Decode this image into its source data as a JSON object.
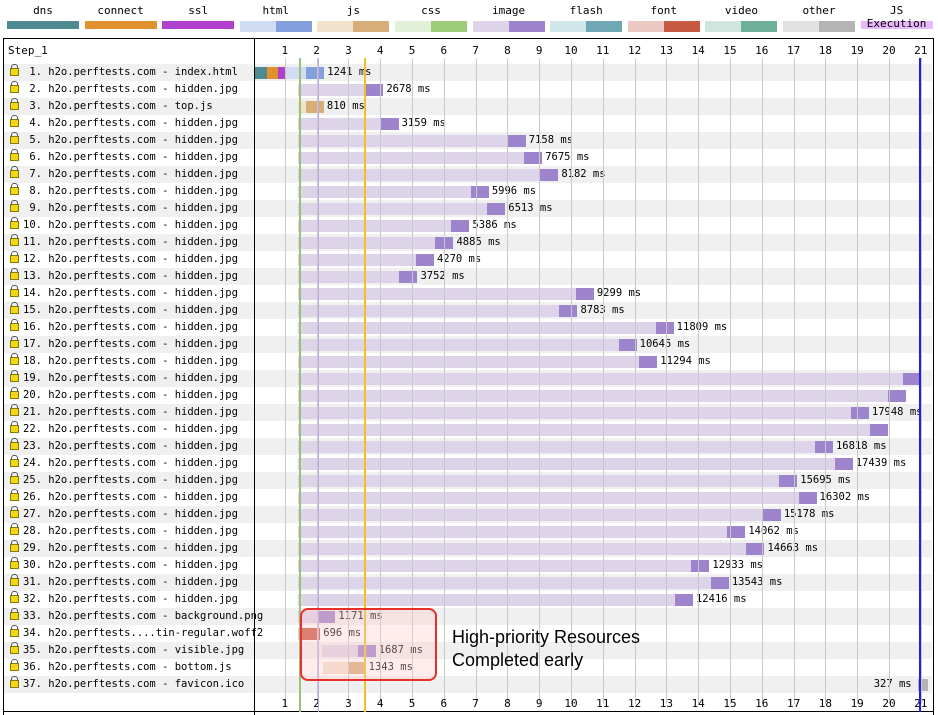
{
  "legend": [
    {
      "label": "dns",
      "light": "#4d8a92",
      "dark": "#4d8a92"
    },
    {
      "label": "connect",
      "light": "#e0902e",
      "dark": "#e0902e"
    },
    {
      "label": "ssl",
      "light": "#b040cc",
      "dark": "#b040cc"
    },
    {
      "label": "html",
      "light": "#d0dcf2",
      "dark": "#839fdc"
    },
    {
      "label": "js",
      "light": "#f0e2cc",
      "dark": "#d8ae78"
    },
    {
      "label": "css",
      "light": "#e2f0d8",
      "dark": "#9ccc78"
    },
    {
      "label": "image",
      "light": "#ddd4ea",
      "dark": "#9e84cc"
    },
    {
      "label": "flash",
      "light": "#cfe6ea",
      "dark": "#6fa8b4"
    },
    {
      "label": "font",
      "light": "#eccac4",
      "dark": "#c85a44"
    },
    {
      "label": "video",
      "light": "#cfe6de",
      "dark": "#6fb09a"
    },
    {
      "label": "other",
      "light": "#e2e2e2",
      "dark": "#b4b4b4"
    },
    {
      "label": "JS Execution",
      "light": "#e8b8f8",
      "dark": "#e8b8f8"
    }
  ],
  "step_label": "Step_1",
  "axis_ticks": [
    "1",
    "2",
    "3",
    "4",
    "5",
    "6",
    "7",
    "8",
    "9",
    "10",
    "11",
    "12",
    "13",
    "14",
    "15",
    "16",
    "17",
    "18",
    "19",
    "20",
    "21"
  ],
  "markers": [
    {
      "name": "start-render",
      "time_s": 1.45,
      "color": "#9ac07a"
    },
    {
      "name": "dom-interactive",
      "time_s": 2.05,
      "color": "#c0a8e0"
    },
    {
      "name": "dom-content-loaded",
      "time_s": 3.5,
      "color": "#f2c020"
    },
    {
      "name": "on-load",
      "time_s": 20.95,
      "color": "#2020e0"
    }
  ],
  "requests": [
    {
      "label": " 1. h2o.perftests.com - index.html",
      "type": "html",
      "start_s": 1.0,
      "duration_ms": 1241,
      "dur_label": "1241 ms",
      "pre": [
        [
          "dns",
          0.06,
          0.45
        ],
        [
          "connect",
          0.45,
          0.8
        ],
        [
          "ssl",
          0.8,
          1.0
        ]
      ]
    },
    {
      "label": " 2. h2o.perftests.com - hidden.jpg",
      "type": "image",
      "start_s": 1.42,
      "duration_ms": 2678,
      "dur_label": "2678 ms"
    },
    {
      "label": " 3. h2o.perftests.com - top.js",
      "type": "js",
      "start_s": 1.42,
      "duration_ms": 810,
      "dur_label": "810 ms"
    },
    {
      "label": " 4. h2o.perftests.com - hidden.jpg",
      "type": "image",
      "start_s": 1.42,
      "duration_ms": 3159,
      "dur_label": "3159 ms"
    },
    {
      "label": " 5. h2o.perftests.com - hidden.jpg",
      "type": "image",
      "start_s": 1.42,
      "duration_ms": 7158,
      "dur_label": "7158 ms"
    },
    {
      "label": " 6. h2o.perftests.com - hidden.jpg",
      "type": "image",
      "start_s": 1.42,
      "duration_ms": 7675,
      "dur_label": "7675 ms"
    },
    {
      "label": " 7. h2o.perftests.com - hidden.jpg",
      "type": "image",
      "start_s": 1.42,
      "duration_ms": 8182,
      "dur_label": "8182 ms"
    },
    {
      "label": " 8. h2o.perftests.com - hidden.jpg",
      "type": "image",
      "start_s": 1.42,
      "duration_ms": 5996,
      "dur_label": "5996 ms"
    },
    {
      "label": " 9. h2o.perftests.com - hidden.jpg",
      "type": "image",
      "start_s": 1.42,
      "duration_ms": 6513,
      "dur_label": "6513 ms"
    },
    {
      "label": "10. h2o.perftests.com - hidden.jpg",
      "type": "image",
      "start_s": 1.42,
      "duration_ms": 5386,
      "dur_label": "5386 ms"
    },
    {
      "label": "11. h2o.perftests.com - hidden.jpg",
      "type": "image",
      "start_s": 1.42,
      "duration_ms": 4885,
      "dur_label": "4885 ms"
    },
    {
      "label": "12. h2o.perftests.com - hidden.jpg",
      "type": "image",
      "start_s": 1.42,
      "duration_ms": 4270,
      "dur_label": "4270 ms"
    },
    {
      "label": "13. h2o.perftests.com - hidden.jpg",
      "type": "image",
      "start_s": 1.42,
      "duration_ms": 3752,
      "dur_label": "3752 ms"
    },
    {
      "label": "14. h2o.perftests.com - hidden.jpg",
      "type": "image",
      "start_s": 1.42,
      "duration_ms": 9299,
      "dur_label": "9299 ms"
    },
    {
      "label": "15. h2o.perftests.com - hidden.jpg",
      "type": "image",
      "start_s": 1.42,
      "duration_ms": 8783,
      "dur_label": "8783 ms"
    },
    {
      "label": "16. h2o.perftests.com - hidden.jpg",
      "type": "image",
      "start_s": 1.42,
      "duration_ms": 11809,
      "dur_label": "11809 ms"
    },
    {
      "label": "17. h2o.perftests.com - hidden.jpg",
      "type": "image",
      "start_s": 1.42,
      "duration_ms": 10645,
      "dur_label": "10645 ms"
    },
    {
      "label": "18. h2o.perftests.com - hidden.jpg",
      "type": "image",
      "start_s": 1.42,
      "duration_ms": 11294,
      "dur_label": "11294 ms"
    },
    {
      "label": "19. h2o.perftests.com - hidden.jpg",
      "type": "image",
      "start_s": 1.42,
      "duration_ms": 19600,
      "dur_label": ""
    },
    {
      "label": "20. h2o.perftests.com - hidden.jpg",
      "type": "image",
      "start_s": 1.42,
      "duration_ms": 19100,
      "dur_label": ""
    },
    {
      "label": "21. h2o.perftests.com - hidden.jpg",
      "type": "image",
      "start_s": 1.42,
      "duration_ms": 17948,
      "dur_label": "17948 ms"
    },
    {
      "label": "22. h2o.perftests.com - hidden.jpg",
      "type": "image",
      "start_s": 1.42,
      "duration_ms": 18550,
      "dur_label": ""
    },
    {
      "label": "23. h2o.perftests.com - hidden.jpg",
      "type": "image",
      "start_s": 1.42,
      "duration_ms": 16818,
      "dur_label": "16818 ms"
    },
    {
      "label": "24. h2o.perftests.com - hidden.jpg",
      "type": "image",
      "start_s": 1.42,
      "duration_ms": 17439,
      "dur_label": "17439 ms"
    },
    {
      "label": "25. h2o.perftests.com - hidden.jpg",
      "type": "image",
      "start_s": 1.42,
      "duration_ms": 15695,
      "dur_label": "15695 ms"
    },
    {
      "label": "26. h2o.perftests.com - hidden.jpg",
      "type": "image",
      "start_s": 1.42,
      "duration_ms": 16302,
      "dur_label": "16302 ms"
    },
    {
      "label": "27. h2o.perftests.com - hidden.jpg",
      "type": "image",
      "start_s": 1.42,
      "duration_ms": 15178,
      "dur_label": "15178 ms"
    },
    {
      "label": "28. h2o.perftests.com - hidden.jpg",
      "type": "image",
      "start_s": 1.42,
      "duration_ms": 14062,
      "dur_label": "14062 ms"
    },
    {
      "label": "29. h2o.perftests.com - hidden.jpg",
      "type": "image",
      "start_s": 1.42,
      "duration_ms": 14663,
      "dur_label": "14663 ms"
    },
    {
      "label": "30. h2o.perftests.com - hidden.jpg",
      "type": "image",
      "start_s": 1.42,
      "duration_ms": 12933,
      "dur_label": "12933 ms"
    },
    {
      "label": "31. h2o.perftests.com - hidden.jpg",
      "type": "image",
      "start_s": 1.42,
      "duration_ms": 13543,
      "dur_label": "13543 ms"
    },
    {
      "label": "32. h2o.perftests.com - hidden.jpg",
      "type": "image",
      "start_s": 1.42,
      "duration_ms": 12416,
      "dur_label": "12416 ms"
    },
    {
      "label": "33. h2o.perftests.com - background.png",
      "type": "image",
      "start_s": 1.42,
      "duration_ms": 1171,
      "dur_label": "1171 ms"
    },
    {
      "label": "34. h2o.perftests....tin-regular.woff2",
      "type": "font",
      "start_s": 1.42,
      "duration_ms": 696,
      "dur_label": "696 ms"
    },
    {
      "label": "35. h2o.perftests.com - visible.jpg",
      "type": "image",
      "start_s": 2.17,
      "duration_ms": 1687,
      "dur_label": "1687 ms"
    },
    {
      "label": "36. h2o.perftests.com - bottom.js",
      "type": "js",
      "start_s": 2.2,
      "duration_ms": 1343,
      "dur_label": "1343 ms"
    },
    {
      "label": "37. h2o.perftests.com - favicon.ico",
      "type": "other",
      "start_s": 20.9,
      "duration_ms": 327,
      "dur_label": "327 ms",
      "label_left": true
    }
  ],
  "annotation": {
    "line1": "High-priority Resources",
    "line2": "Completed early"
  }
}
